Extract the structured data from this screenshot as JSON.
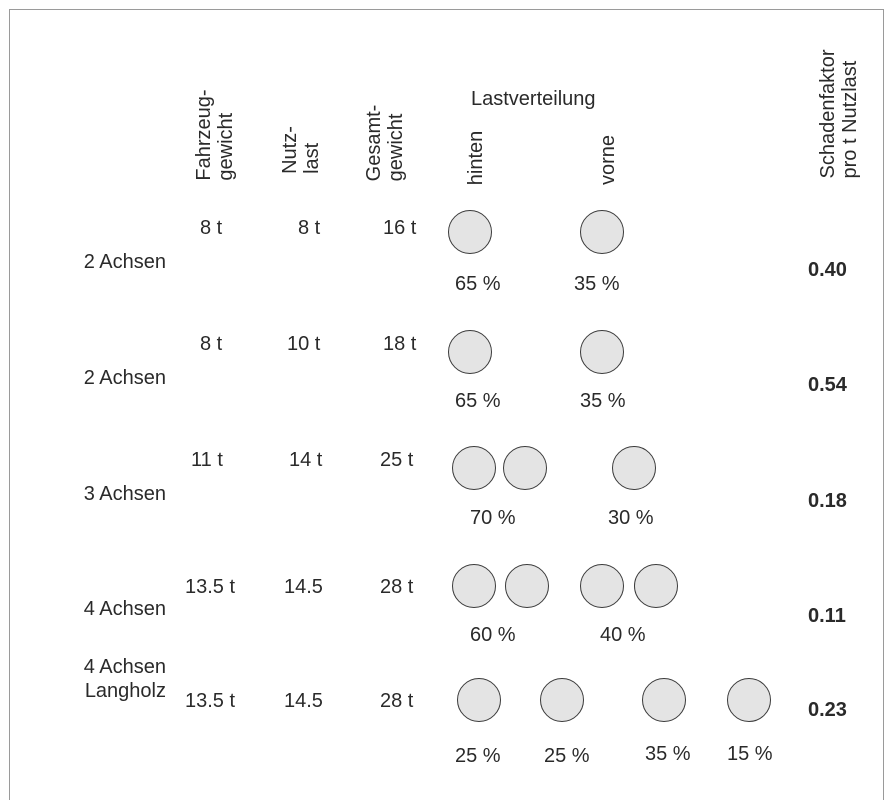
{
  "headers": {
    "fahrzeuggewicht": [
      "Fahrzeug-",
      "gewicht"
    ],
    "nutzlast": [
      "Nutz-",
      "last"
    ],
    "gesamtgewicht": [
      "Gesamt-",
      "gewicht"
    ],
    "lastverteilung": "Lastverteilung",
    "hinten": "hinten",
    "vorne": "vorne",
    "schadenfaktor": [
      "Schadenfaktor",
      "pro t Nutzlast"
    ]
  },
  "rows": [
    {
      "label": [
        "2 Achsen"
      ],
      "fahrzeuggewicht": "8 t",
      "nutzlast": "8 t",
      "gesamtgewicht": "16 t",
      "percentages": [
        "65 %",
        "35 %"
      ],
      "schadenfaktor": "0.40"
    },
    {
      "label": [
        "2 Achsen"
      ],
      "fahrzeuggewicht": "8 t",
      "nutzlast": "10 t",
      "gesamtgewicht": "18 t",
      "percentages": [
        "65 %",
        "35 %"
      ],
      "schadenfaktor": "0.54"
    },
    {
      "label": [
        "3 Achsen"
      ],
      "fahrzeuggewicht": "11 t",
      "nutzlast": "14 t",
      "gesamtgewicht": "25 t",
      "percentages": [
        "70 %",
        "30 %"
      ],
      "schadenfaktor": "0.18"
    },
    {
      "label": [
        "4 Achsen"
      ],
      "fahrzeuggewicht": "13.5 t",
      "nutzlast": "14.5",
      "gesamtgewicht": "28 t",
      "percentages": [
        "60 %",
        "40 %"
      ],
      "schadenfaktor": "0.11"
    },
    {
      "label": [
        "4 Achsen",
        "Langholz"
      ],
      "fahrzeuggewicht": "13.5 t",
      "nutzlast": "14.5",
      "gesamtgewicht": "28 t",
      "percentages": [
        "25 %",
        "25 %",
        "35 %",
        "15 %"
      ],
      "schadenfaktor": "0.23"
    }
  ]
}
